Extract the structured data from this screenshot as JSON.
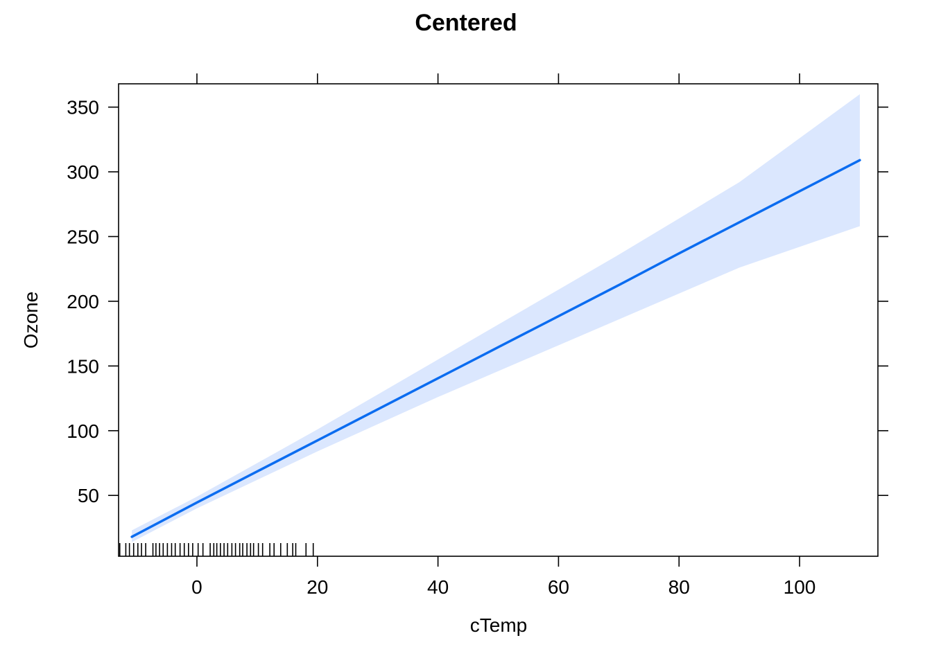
{
  "chart_data": {
    "type": "line",
    "title": "Centered",
    "xlabel": "cTemp",
    "ylabel": "Ozone",
    "xlim": [
      -13,
      113
    ],
    "ylim": [
      3,
      368
    ],
    "x_ticks": [
      0,
      20,
      40,
      60,
      80,
      100
    ],
    "y_ticks": [
      50,
      100,
      150,
      200,
      250,
      300,
      350
    ],
    "grid": false,
    "colors": {
      "line": "#0b6cf0",
      "band": "#dbe7fe",
      "axis": "#000000",
      "rug": "#000000"
    },
    "series": [
      {
        "x": [
          -10.8,
          0,
          10,
          20,
          30,
          40,
          50,
          60,
          70,
          80,
          90,
          100,
          110
        ],
        "y": [
          18,
          44.5,
          68.5,
          92.5,
          116.5,
          140.5,
          164.5,
          188.5,
          212.5,
          237,
          261,
          285,
          309
        ]
      }
    ],
    "confidence_band": {
      "x": [
        -10.8,
        0,
        10,
        20,
        30,
        40,
        50,
        60,
        70,
        80,
        90,
        100,
        110
      ],
      "lower": [
        14,
        40,
        62,
        84,
        105,
        126,
        146,
        166,
        186,
        206,
        226,
        242,
        258
      ],
      "upper": [
        23,
        49,
        75,
        101,
        128,
        155,
        182,
        209,
        236,
        264,
        292,
        326,
        360
      ]
    },
    "rug_x": [
      -12.8,
      -11.8,
      -11.2,
      -10.5,
      -9.8,
      -9.2,
      -8.5,
      -7.3,
      -6.8,
      -6.2,
      -5.6,
      -4.9,
      -4.2,
      -3.6,
      -2.8,
      -2.1,
      -1.4,
      -0.7,
      0.2,
      1.0,
      2.2,
      2.8,
      3.3,
      3.9,
      4.5,
      5.1,
      5.8,
      6.4,
      7.1,
      7.6,
      8.3,
      8.9,
      9.4,
      10.2,
      10.9,
      12.1,
      12.8,
      13.9,
      15.0,
      15.9,
      16.4,
      18.1,
      19.3
    ]
  }
}
